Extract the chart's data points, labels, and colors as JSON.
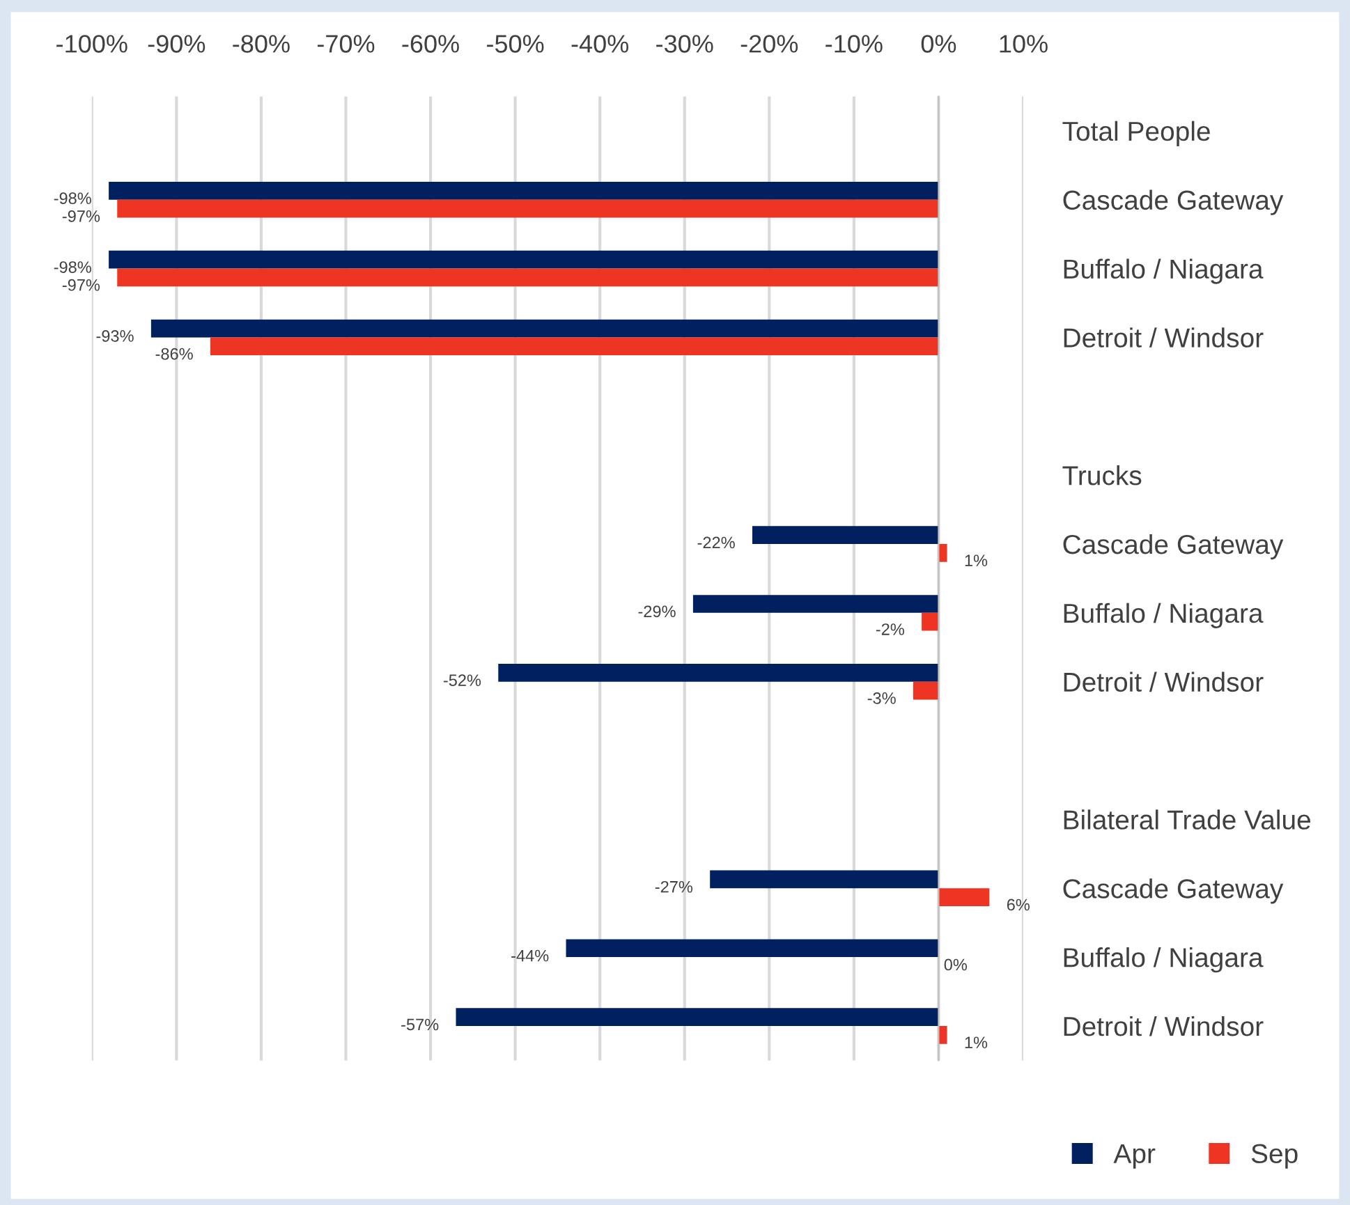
{
  "chart_data": {
    "type": "bar",
    "orientation": "horizontal",
    "categories": [
      "Total People",
      "Cascade Gateway",
      "Buffalo / Niagara",
      "Detroit / Windsor",
      null,
      "Trucks",
      "Cascade Gateway",
      "Buffalo / Niagara",
      "Detroit / Windsor",
      null,
      "Bilateral Trade Value",
      "Cascade Gateway",
      "Buffalo / Niagara",
      "Detroit / Windsor"
    ],
    "series": [
      {
        "name": "Apr",
        "color": "#002060",
        "values": [
          null,
          -98,
          -98,
          -93,
          null,
          null,
          -22,
          -29,
          -52,
          null,
          null,
          -27,
          -44,
          -57
        ],
        "value_labels": [
          null,
          "-98%",
          "-98%",
          "-93%",
          null,
          null,
          "-22%",
          "-29%",
          "-52%",
          null,
          null,
          "-27%",
          "-44%",
          "-57%"
        ]
      },
      {
        "name": "Sep",
        "color": "#ee3524",
        "values": [
          null,
          -97,
          -97,
          -86,
          null,
          null,
          1,
          -2,
          -3,
          null,
          null,
          6,
          0,
          1
        ],
        "value_labels": [
          null,
          "-97%",
          "-97%",
          "-86%",
          null,
          null,
          "1%",
          "-2%",
          "-3%",
          null,
          null,
          "6%",
          "0%",
          "1%"
        ]
      }
    ],
    "xlim": [
      -100,
      10
    ],
    "xticks": [
      {
        "value": -100,
        "label": "-100%"
      },
      {
        "value": -90,
        "label": "-90%"
      },
      {
        "value": -80,
        "label": "-80%"
      },
      {
        "value": -70,
        "label": "-70%"
      },
      {
        "value": -60,
        "label": "-60%"
      },
      {
        "value": -50,
        "label": "-50%"
      },
      {
        "value": -40,
        "label": "-40%"
      },
      {
        "value": -30,
        "label": "-30%"
      },
      {
        "value": -20,
        "label": "-20%"
      },
      {
        "value": -10,
        "label": "-10%"
      },
      {
        "value": 0,
        "label": "0%"
      },
      {
        "value": 10,
        "label": "10%"
      }
    ],
    "grid": "x",
    "legend": "bottom right"
  }
}
